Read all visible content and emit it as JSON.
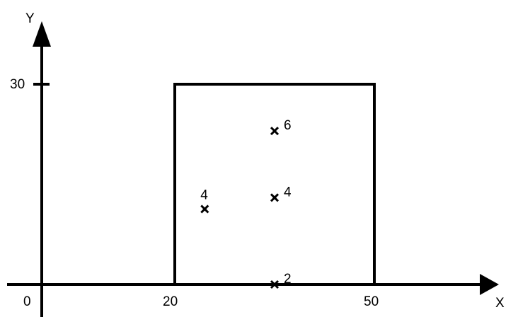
{
  "axes": {
    "x_label": "X",
    "y_label": "Y",
    "origin_label": "0",
    "x_ticks": [
      "20",
      "50"
    ],
    "y_ticks": [
      "30"
    ]
  },
  "rectangle": {
    "x_min": 20,
    "x_max": 50,
    "y_min": 0,
    "y_max": 30
  },
  "points": [
    {
      "x": 35,
      "y": 23,
      "label": "6"
    },
    {
      "x": 35,
      "y": 13,
      "label": "4"
    },
    {
      "x": 24.5,
      "y": 11.3,
      "label": "4"
    },
    {
      "x": 35,
      "y": 0,
      "label": "2"
    }
  ],
  "colors": {
    "ink": "#000000",
    "background": "#ffffff"
  }
}
